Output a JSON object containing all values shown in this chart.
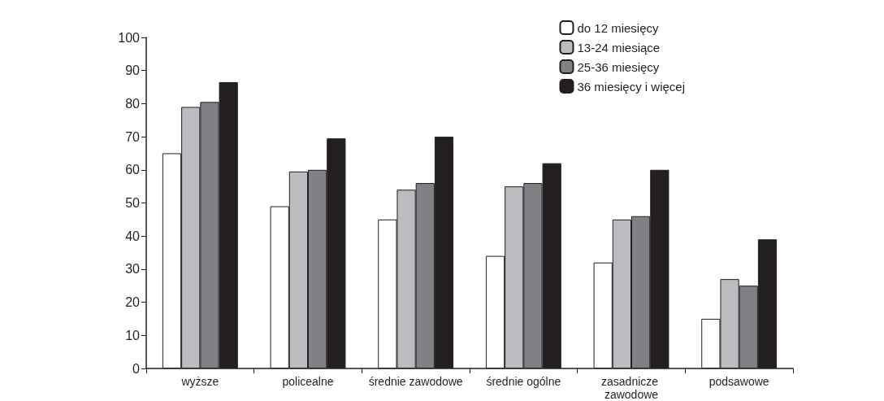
{
  "chart_data": {
    "type": "bar",
    "categories": [
      "wyższe",
      "policealne",
      "średnie zawodowe",
      "średnie ogólne",
      "zasadnicze zawodowe",
      "podsawowe"
    ],
    "series": [
      {
        "name": "do 12 miesięcy",
        "color": "#ffffff",
        "values": [
          65,
          49,
          45,
          34,
          32,
          15
        ]
      },
      {
        "name": "13-24 miesiące",
        "color": "#bbbcc0",
        "values": [
          79,
          59.5,
          54,
          55,
          45,
          27
        ]
      },
      {
        "name": "25-36 miesięcy",
        "color": "#808185",
        "values": [
          80.5,
          60,
          56,
          56,
          46,
          25
        ]
      },
      {
        "name": "36 miesięcy i więcej",
        "color": "#231f20",
        "values": [
          86.5,
          69.5,
          70,
          62,
          60,
          39
        ]
      }
    ],
    "ylim": [
      0,
      100
    ],
    "yticks": [
      0,
      10,
      20,
      30,
      40,
      50,
      60,
      70,
      80,
      90,
      100
    ],
    "grid": false,
    "legend": "top right"
  }
}
